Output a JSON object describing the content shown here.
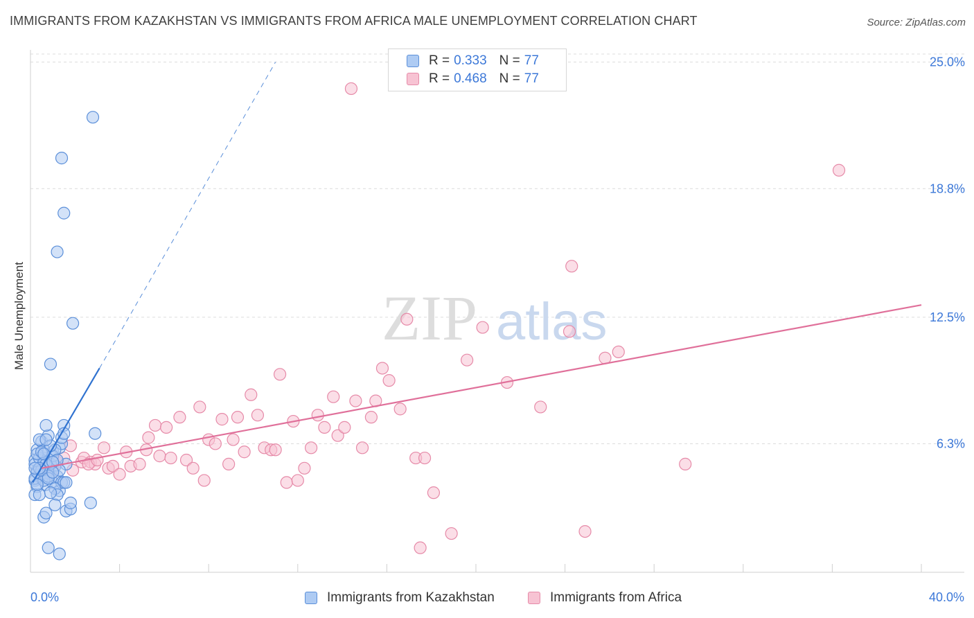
{
  "header": {
    "title": "IMMIGRANTS FROM KAZAKHSTAN VS IMMIGRANTS FROM AFRICA MALE UNEMPLOYMENT CORRELATION CHART",
    "source": "Source: ZipAtlas.com"
  },
  "watermark": "ZIPatlas",
  "legend": {
    "series1": {
      "r_label": "R =",
      "r_value": "0.333",
      "n_label": "N =",
      "n_value": "77"
    },
    "series2": {
      "r_label": "R =",
      "r_value": "0.468",
      "n_label": "N =",
      "n_value": "77"
    }
  },
  "colors": {
    "blue_fill": "#aecbf3",
    "blue_stroke": "#5b8fd9",
    "blue_line": "#2f72d0",
    "pink_fill": "#f7c3d3",
    "pink_stroke": "#e68aa8",
    "pink_line": "#e0709a",
    "tick_text": "#3c78d8",
    "grid": "#dcdcdc"
  },
  "chart_data": {
    "type": "scatter",
    "title": "IMMIGRANTS FROM KAZAKHSTAN VS IMMIGRANTS FROM AFRICA MALE UNEMPLOYMENT CORRELATION CHART",
    "xlabel": "",
    "ylabel": "Male Unemployment",
    "xlim": [
      0,
      40
    ],
    "ylim": [
      0,
      25.6
    ],
    "x_tick_labels": [
      "0.0%",
      "40.0%"
    ],
    "y_ticks": [
      6.3,
      12.5,
      18.8,
      25.0
    ],
    "y_tick_labels": [
      "6.3%",
      "12.5%",
      "18.8%",
      "25.0%"
    ],
    "x_minor_ticks": [
      0,
      4,
      8,
      12,
      16,
      20,
      24,
      28,
      32,
      36,
      40
    ],
    "grid": true,
    "legend_position": "top-center",
    "series": [
      {
        "name": "Immigrants from Kazakhstan",
        "color": "#aecbf3",
        "r": 0.333,
        "n": 77,
        "trendline": {
          "x": [
            0.1,
            3.1
          ],
          "y": [
            4.4,
            10.0
          ],
          "dashed_extension_to": [
            11.0,
            25.0
          ]
        },
        "points": [
          [
            0.2,
            4.5
          ],
          [
            0.3,
            5.0
          ],
          [
            0.2,
            5.5
          ],
          [
            0.4,
            4.8
          ],
          [
            0.5,
            5.2
          ],
          [
            0.3,
            4.2
          ],
          [
            0.6,
            5.6
          ],
          [
            0.2,
            3.8
          ],
          [
            0.4,
            3.8
          ],
          [
            0.5,
            4.6
          ],
          [
            0.7,
            4.3
          ],
          [
            0.8,
            5.0
          ],
          [
            0.9,
            4.8
          ],
          [
            1.0,
            4.4
          ],
          [
            0.6,
            6.0
          ],
          [
            0.3,
            6.0
          ],
          [
            0.5,
            6.4
          ],
          [
            0.8,
            6.7
          ],
          [
            0.7,
            7.2
          ],
          [
            1.0,
            5.9
          ],
          [
            1.1,
            5.2
          ],
          [
            1.2,
            4.7
          ],
          [
            1.3,
            4.0
          ],
          [
            1.4,
            4.4
          ],
          [
            1.5,
            4.4
          ],
          [
            0.2,
            5.3
          ],
          [
            0.4,
            5.6
          ],
          [
            0.6,
            5.4
          ],
          [
            0.9,
            5.3
          ],
          [
            1.3,
            6.1
          ],
          [
            1.4,
            6.3
          ],
          [
            1.4,
            6.6
          ],
          [
            1.5,
            7.2
          ],
          [
            1.6,
            5.3
          ],
          [
            1.6,
            4.4
          ],
          [
            1.1,
            4.1
          ],
          [
            1.2,
            3.8
          ],
          [
            0.9,
            3.9
          ],
          [
            1.1,
            3.3
          ],
          [
            0.6,
            2.7
          ],
          [
            0.7,
            2.9
          ],
          [
            1.6,
            3.0
          ],
          [
            1.8,
            3.1
          ],
          [
            1.8,
            3.4
          ],
          [
            2.7,
            3.4
          ],
          [
            0.8,
            1.2
          ],
          [
            1.3,
            0.9
          ],
          [
            2.9,
            6.8
          ],
          [
            1.9,
            12.2
          ],
          [
            0.9,
            10.2
          ],
          [
            1.2,
            15.7
          ],
          [
            1.5,
            17.6
          ],
          [
            1.4,
            20.3
          ],
          [
            2.8,
            22.3
          ],
          [
            0.3,
            5.8
          ],
          [
            0.5,
            5.9
          ],
          [
            0.4,
            6.5
          ],
          [
            0.2,
            4.6
          ],
          [
            0.3,
            4.9
          ],
          [
            0.6,
            4.5
          ],
          [
            0.8,
            4.7
          ],
          [
            1.0,
            5.7
          ],
          [
            1.1,
            6.0
          ],
          [
            1.2,
            5.5
          ],
          [
            0.7,
            5.3
          ],
          [
            0.5,
            5.0
          ],
          [
            0.4,
            5.1
          ],
          [
            0.9,
            6.2
          ],
          [
            1.3,
            5.0
          ],
          [
            1.0,
            5.4
          ],
          [
            0.6,
            5.8
          ],
          [
            0.2,
            5.1
          ],
          [
            0.3,
            4.3
          ],
          [
            1.5,
            6.8
          ],
          [
            0.7,
            6.5
          ],
          [
            0.8,
            4.6
          ],
          [
            1.0,
            4.9
          ]
        ]
      },
      {
        "name": "Immigrants from Africa",
        "color": "#f7c3d3",
        "r": 0.468,
        "n": 77,
        "trendline": {
          "x": [
            0.5,
            40.0
          ],
          "y": [
            5.1,
            13.1
          ]
        },
        "points": [
          [
            1.0,
            5.0
          ],
          [
            1.2,
            5.4
          ],
          [
            1.5,
            5.6
          ],
          [
            1.8,
            6.2
          ],
          [
            2.3,
            5.4
          ],
          [
            2.4,
            5.6
          ],
          [
            2.7,
            5.4
          ],
          [
            2.9,
            5.3
          ],
          [
            3.3,
            6.1
          ],
          [
            3.5,
            5.1
          ],
          [
            3.7,
            5.2
          ],
          [
            4.0,
            4.8
          ],
          [
            4.3,
            5.9
          ],
          [
            4.5,
            5.2
          ],
          [
            4.9,
            5.3
          ],
          [
            5.2,
            6.0
          ],
          [
            5.3,
            6.6
          ],
          [
            5.6,
            7.2
          ],
          [
            5.8,
            5.7
          ],
          [
            6.1,
            7.1
          ],
          [
            6.3,
            5.6
          ],
          [
            6.7,
            7.6
          ],
          [
            7.0,
            5.5
          ],
          [
            7.3,
            5.1
          ],
          [
            7.6,
            8.1
          ],
          [
            7.8,
            4.5
          ],
          [
            8.0,
            6.5
          ],
          [
            8.3,
            6.3
          ],
          [
            8.6,
            7.5
          ],
          [
            8.9,
            5.3
          ],
          [
            9.1,
            6.5
          ],
          [
            9.3,
            7.6
          ],
          [
            9.6,
            5.9
          ],
          [
            9.9,
            8.7
          ],
          [
            10.2,
            7.7
          ],
          [
            10.5,
            6.1
          ],
          [
            10.8,
            6.0
          ],
          [
            11.0,
            6.0
          ],
          [
            11.2,
            9.7
          ],
          [
            11.5,
            4.4
          ],
          [
            11.8,
            7.4
          ],
          [
            12.0,
            4.5
          ],
          [
            12.3,
            5.1
          ],
          [
            12.6,
            6.1
          ],
          [
            12.9,
            7.7
          ],
          [
            13.2,
            7.1
          ],
          [
            13.6,
            8.6
          ],
          [
            13.8,
            6.7
          ],
          [
            14.1,
            7.1
          ],
          [
            14.6,
            8.4
          ],
          [
            14.9,
            6.1
          ],
          [
            15.3,
            7.6
          ],
          [
            15.5,
            8.4
          ],
          [
            15.8,
            10.0
          ],
          [
            16.1,
            9.4
          ],
          [
            16.6,
            8.0
          ],
          [
            16.9,
            12.4
          ],
          [
            17.3,
            5.6
          ],
          [
            17.7,
            5.6
          ],
          [
            17.5,
            1.2
          ],
          [
            18.1,
            3.9
          ],
          [
            18.9,
            1.9
          ],
          [
            19.6,
            10.4
          ],
          [
            20.3,
            12.0
          ],
          [
            21.4,
            9.3
          ],
          [
            22.9,
            8.1
          ],
          [
            24.2,
            11.8
          ],
          [
            24.3,
            15.0
          ],
          [
            24.9,
            2.0
          ],
          [
            25.8,
            10.5
          ],
          [
            26.4,
            10.8
          ],
          [
            29.4,
            5.3
          ],
          [
            36.3,
            19.7
          ],
          [
            14.4,
            23.7
          ],
          [
            2.6,
            5.3
          ],
          [
            3.0,
            5.5
          ],
          [
            1.9,
            5.0
          ]
        ]
      }
    ]
  },
  "bottom_legend": {
    "item1": "Immigrants from Kazakhstan",
    "item2": "Immigrants from Africa"
  }
}
